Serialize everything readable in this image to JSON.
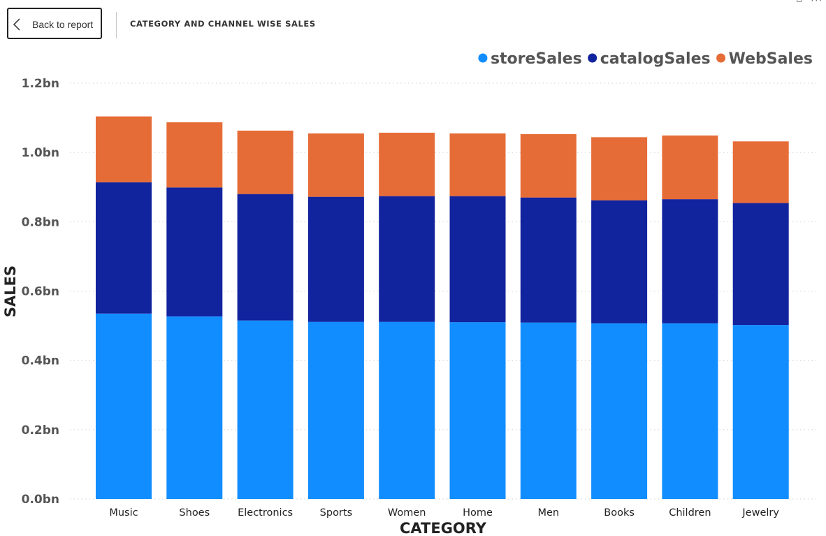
{
  "header": {
    "back_label": "Back to report",
    "title": "CATEGORY AND CHANNEL WISE SALES"
  },
  "colors": {
    "storeSales": "#118DFF",
    "catalogSales": "#12239E",
    "WebSales": "#E66C37",
    "gridline": "#cfcfcf"
  },
  "chart_data": {
    "type": "bar",
    "stacked": true,
    "xlabel": "CATEGORY",
    "ylabel": "SALES",
    "ylim": [
      0,
      1.2
    ],
    "y_unit": "bn",
    "yticks": [
      "0.0bn",
      "0.2bn",
      "0.4bn",
      "0.6bn",
      "0.8bn",
      "1.0bn",
      "1.2bn"
    ],
    "grid": true,
    "legend_position": "top-right",
    "categories": [
      "Music",
      "Shoes",
      "Electronics",
      "Sports",
      "Women",
      "Home",
      "Men",
      "Books",
      "Children",
      "Jewelry"
    ],
    "series": [
      {
        "name": "storeSales",
        "values": [
          0.535,
          0.527,
          0.515,
          0.511,
          0.511,
          0.51,
          0.509,
          0.507,
          0.507,
          0.502
        ]
      },
      {
        "name": "catalogSales",
        "values": [
          0.379,
          0.372,
          0.365,
          0.361,
          0.363,
          0.364,
          0.361,
          0.355,
          0.358,
          0.352
        ]
      },
      {
        "name": "WebSales",
        "values": [
          0.19,
          0.188,
          0.183,
          0.183,
          0.183,
          0.181,
          0.183,
          0.182,
          0.184,
          0.178
        ]
      }
    ]
  }
}
